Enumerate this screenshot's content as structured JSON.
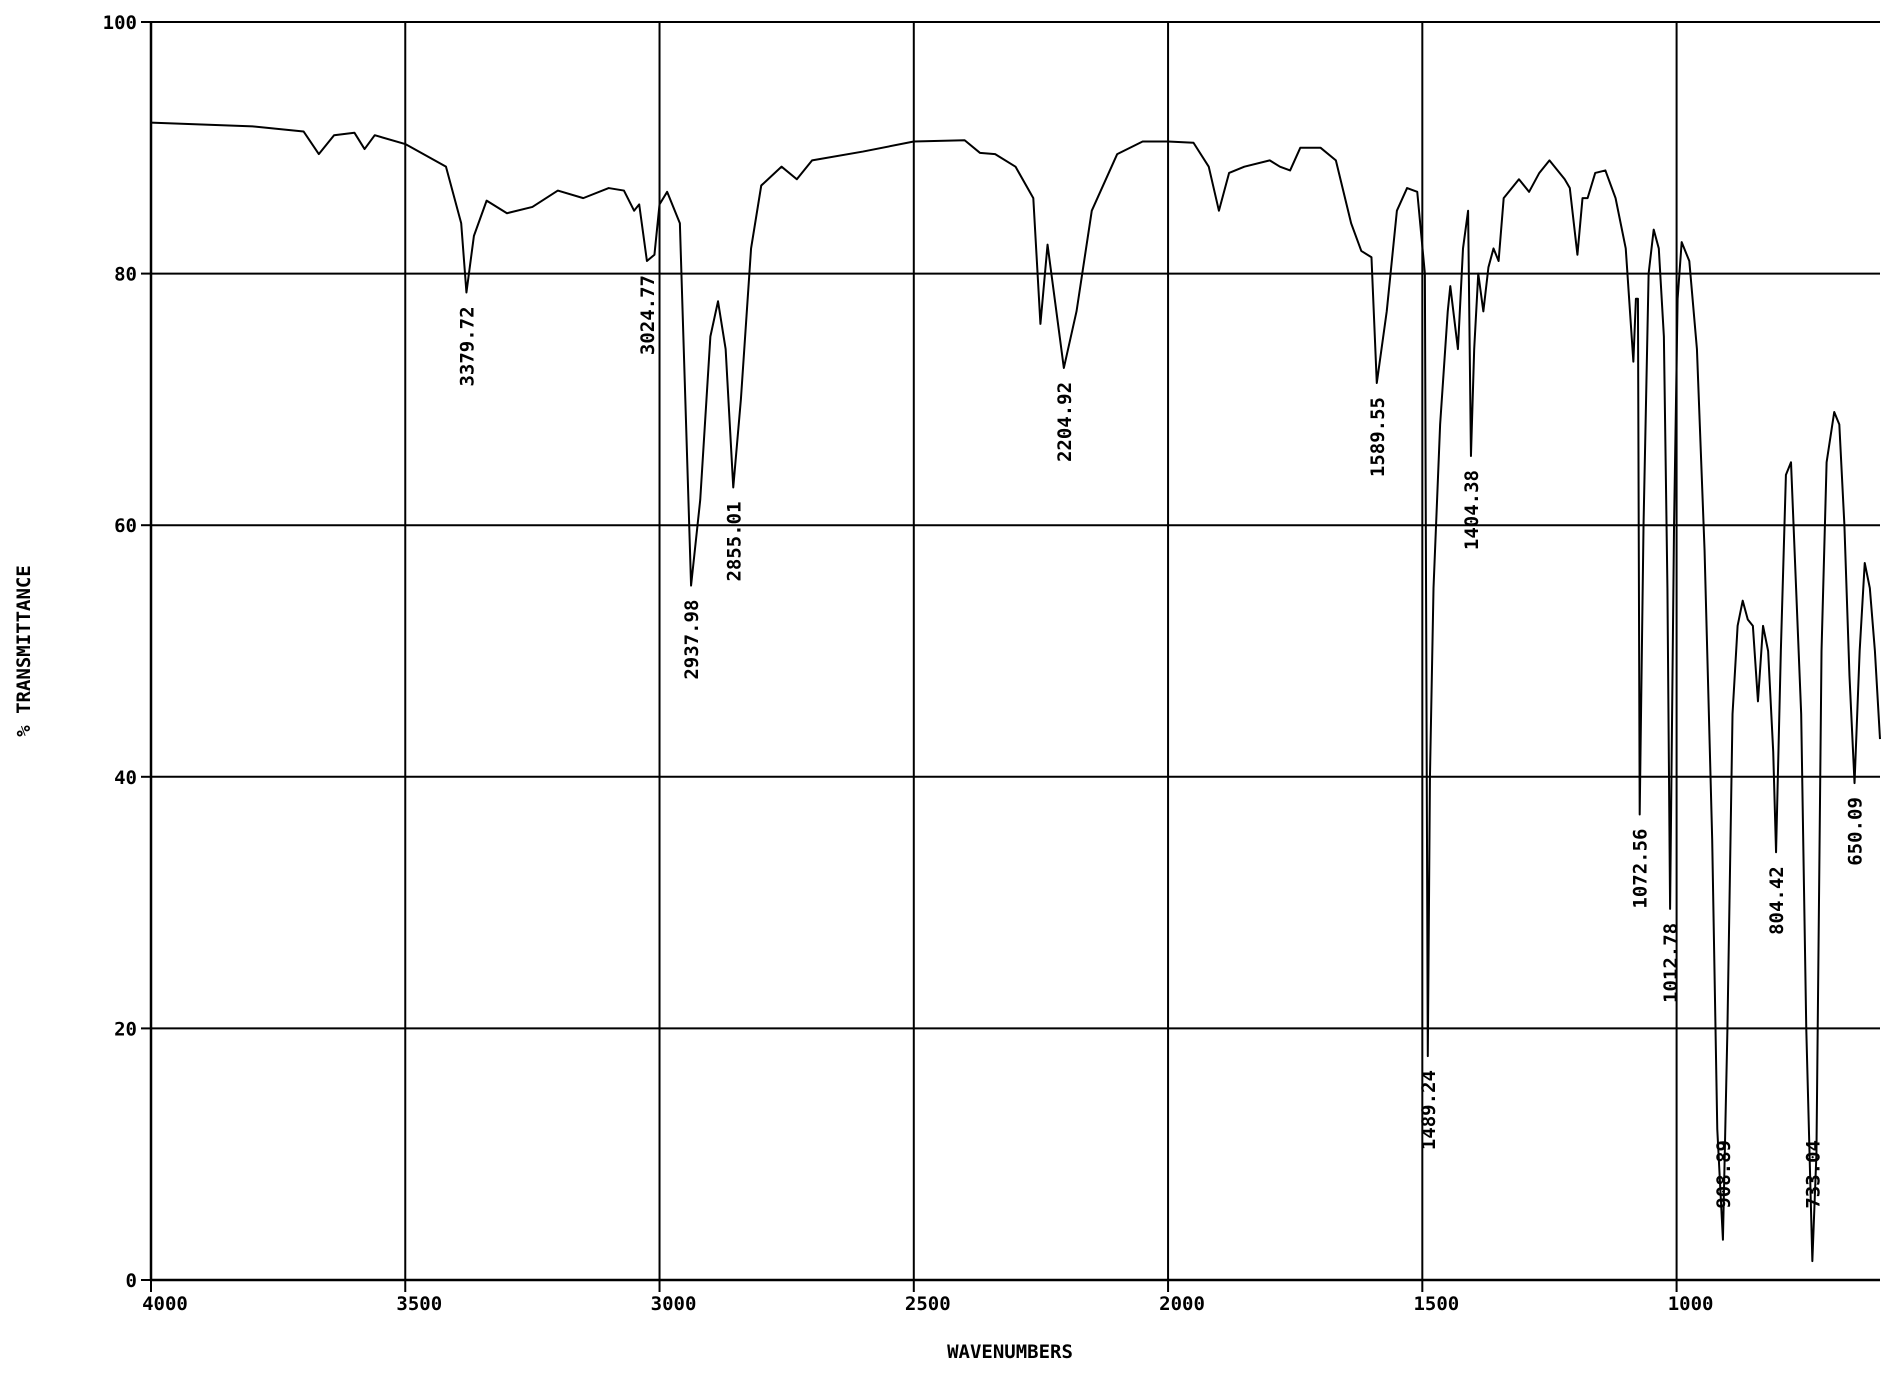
{
  "chart_data": {
    "type": "line",
    "x_label": "WAVENUMBERS",
    "y_label": "% TRANSMITTANCE",
    "color": "#000000",
    "xlim": [
      4000,
      600
    ],
    "ylim": [
      0,
      100
    ],
    "xticks": [
      4000,
      3500,
      3000,
      2500,
      2000,
      1500,
      1000
    ],
    "yticks": [
      0,
      20,
      40,
      60,
      80,
      100
    ],
    "grid": true,
    "x": [
      4000,
      3800,
      3700,
      3670,
      3640,
      3600,
      3580,
      3560,
      3500,
      3420,
      3390,
      3379.72,
      3365,
      3340,
      3300,
      3250,
      3200,
      3150,
      3100,
      3070,
      3050,
      3040,
      3024.77,
      3010,
      3000,
      2985,
      2960,
      2937.98,
      2920,
      2900,
      2885,
      2870,
      2855.01,
      2840,
      2820,
      2800,
      2760,
      2730,
      2700,
      2600,
      2500,
      2400,
      2370,
      2340,
      2300,
      2265,
      2251,
      2237,
      2204.92,
      2180,
      2150,
      2100,
      2050,
      2000,
      1950,
      1920,
      1900,
      1880,
      1850,
      1800,
      1780,
      1760,
      1740,
      1700,
      1670,
      1640,
      1620,
      1600,
      1589.55,
      1570,
      1550,
      1530,
      1510,
      1495,
      1489.24,
      1485,
      1478,
      1465,
      1450,
      1445,
      1430,
      1420,
      1410,
      1404.38,
      1398,
      1390,
      1380,
      1370,
      1360,
      1350,
      1340,
      1310,
      1290,
      1270,
      1250,
      1220,
      1210,
      1195,
      1185,
      1175,
      1160,
      1140,
      1120,
      1100,
      1085,
      1080,
      1076,
      1072.56,
      1065,
      1055,
      1045,
      1035,
      1025,
      1018,
      1012.78,
      1005,
      998,
      990,
      975,
      960,
      945,
      930,
      920,
      908.89,
      900,
      890,
      880,
      870,
      860,
      850,
      840,
      830,
      820,
      810,
      804.42,
      795,
      785,
      775,
      765,
      755,
      745,
      733.04,
      725,
      715,
      705,
      690,
      680,
      670,
      660,
      650.09,
      640,
      630,
      620,
      610,
      600
    ],
    "values": [
      92,
      91.7,
      91.3,
      89.5,
      91,
      91.2,
      89.9,
      91,
      90.3,
      88.5,
      84,
      78.5,
      83,
      85.8,
      84.8,
      85.3,
      86.6,
      86,
      86.8,
      86.6,
      85,
      85.5,
      81,
      81.5,
      85.5,
      86.5,
      84,
      55.2,
      62,
      75,
      77.8,
      74,
      63,
      70,
      82,
      87,
      88.5,
      87.5,
      89,
      89.7,
      90.5,
      90.6,
      89.6,
      89.5,
      88.5,
      86,
      76,
      82.3,
      72.5,
      77,
      85,
      89.5,
      90.5,
      90.5,
      90.4,
      88.5,
      85,
      88,
      88.5,
      89,
      88.5,
      88.2,
      90,
      90,
      89,
      84,
      81.8,
      81.3,
      71.3,
      77,
      85,
      86.8,
      86.5,
      80,
      17.8,
      40,
      55,
      68,
      77,
      79,
      74,
      82,
      85,
      65.5,
      74,
      80,
      77,
      80.5,
      82,
      81,
      86,
      87.5,
      86.5,
      88,
      89,
      87.5,
      86.8,
      81.5,
      86,
      86,
      88,
      88.2,
      86,
      82,
      73,
      78,
      78,
      37,
      60,
      80,
      83.5,
      82,
      75,
      55,
      29.5,
      60,
      78,
      82.5,
      81,
      74,
      58,
      35,
      12,
      3.2,
      20,
      45,
      52,
      54,
      52.5,
      52,
      46,
      52,
      50,
      42,
      34,
      50,
      64,
      65,
      55,
      45,
      20,
      1.5,
      10,
      50,
      65,
      69,
      68,
      60,
      48,
      39.5,
      50,
      57,
      55,
      50,
      43
    ],
    "annotations": [
      3379.72,
      3024.77,
      2937.98,
      2855.01,
      2204.92,
      1589.55,
      1489.24,
      1404.38,
      1072.56,
      1012.78,
      908.89,
      804.42,
      733.04,
      650.09
    ]
  }
}
